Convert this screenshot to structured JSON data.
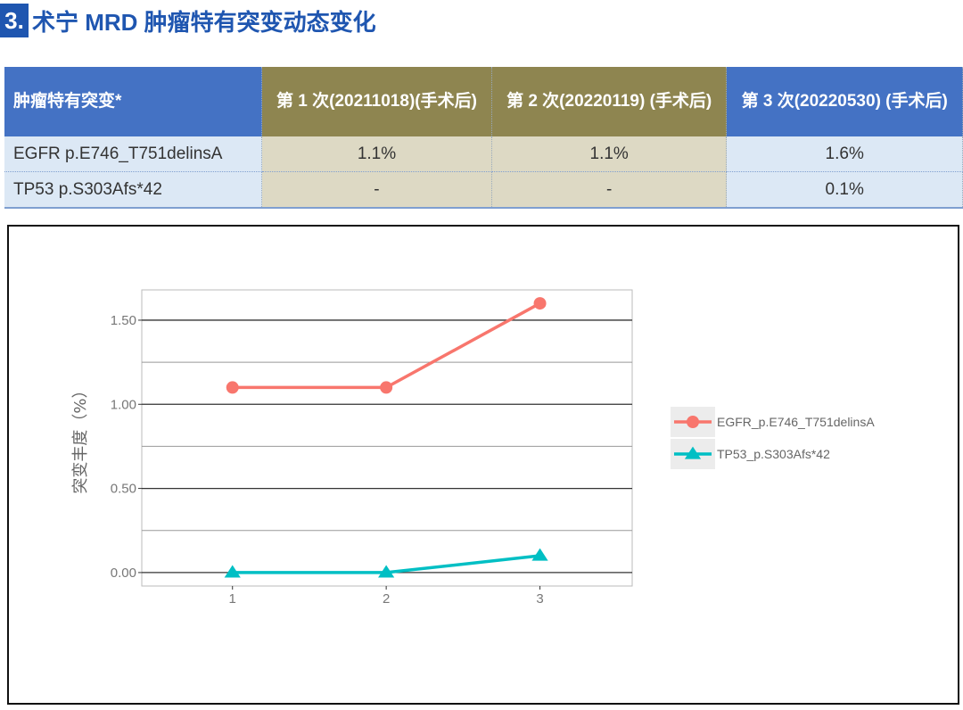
{
  "title": {
    "number": "3.",
    "text": "术宁 MRD 肿瘤特有突变动态变化"
  },
  "table": {
    "headers": [
      "肿瘤特有突变*",
      "第 1 次(20211018)(手术后)",
      "第 2 次(20220119) (手术后)",
      "第 3 次(20220530) (手术后)"
    ],
    "rows": [
      [
        "EGFR p.E746_T751delinsA",
        "1.1%",
        "1.1%",
        "1.6%"
      ],
      [
        "TP53 p.S303Afs*42",
        "-",
        "-",
        "0.1%"
      ]
    ]
  },
  "chart_data": {
    "type": "line",
    "ylabel": "突变丰度（%）",
    "xlabel": "",
    "x": [
      1,
      2,
      3
    ],
    "xticks": [
      "1",
      "2",
      "3"
    ],
    "yticks": [
      "0.00",
      "0.50",
      "1.00",
      "1.50"
    ],
    "xlim": [
      0.41,
      3.6
    ],
    "ylim": [
      -0.08,
      1.68
    ],
    "grid": true,
    "legend_position": "right",
    "series": [
      {
        "name": "EGFR_p.E746_T751delinsA",
        "values": [
          1.1,
          1.1,
          1.6
        ],
        "color": "#f8766d",
        "marker": "circle"
      },
      {
        "name": "TP53_p.S303Afs*42",
        "values": [
          0,
          0,
          0.1
        ],
        "color": "#00bfc4",
        "marker": "triangle"
      }
    ]
  }
}
